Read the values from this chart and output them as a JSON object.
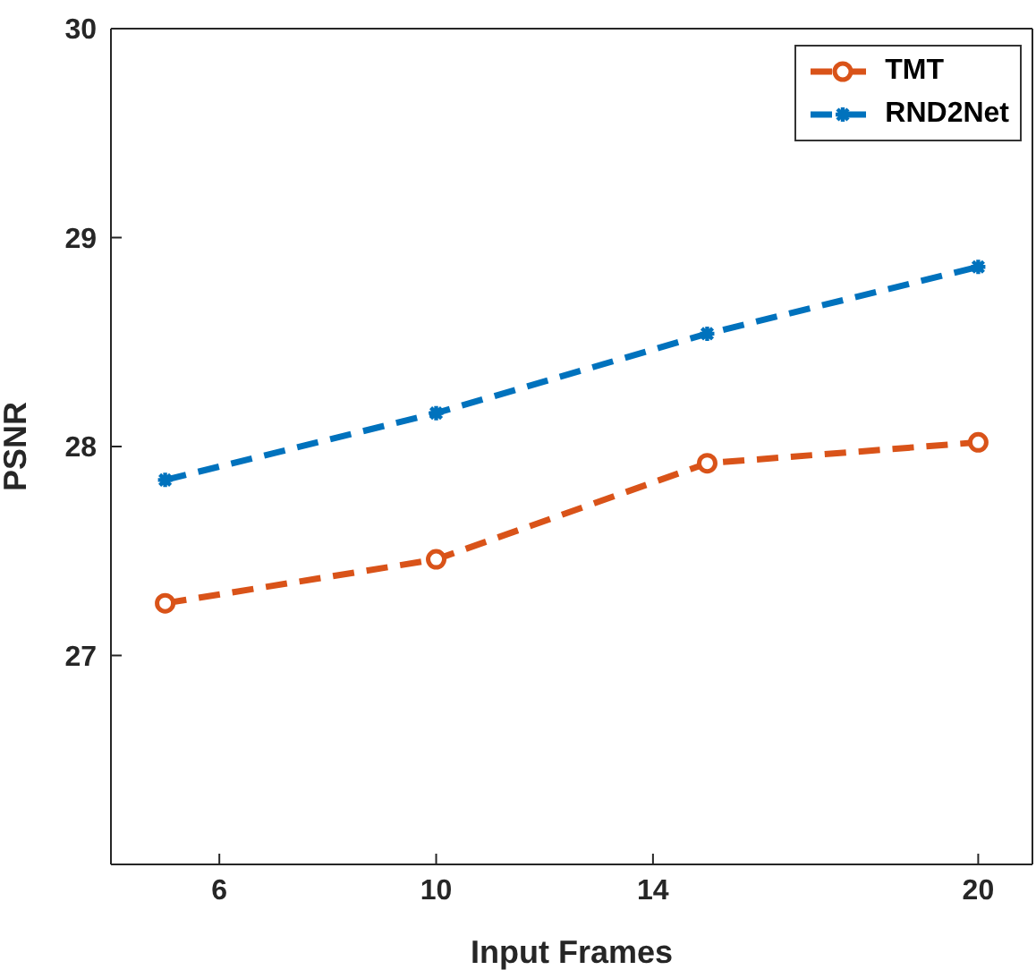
{
  "chart_data": {
    "type": "line",
    "xlabel": "Input Frames",
    "ylabel": "PSNR",
    "xlim": [
      4,
      21
    ],
    "xticks": [
      6,
      10,
      14,
      20
    ],
    "ylim": [
      26,
      30
    ],
    "yticks": [
      27,
      28,
      29,
      30
    ],
    "x": [
      5,
      10,
      15,
      20
    ],
    "series": [
      {
        "name": "TMT",
        "color": "#d95319",
        "values": [
          27.25,
          27.46,
          27.92,
          28.02
        ],
        "marker": "circle"
      },
      {
        "name": "RND2Net",
        "color": "#0072bd",
        "values": [
          27.84,
          28.16,
          28.54,
          28.86
        ],
        "marker": "cross"
      }
    ],
    "line_style": "dashed",
    "grid": false,
    "legend": "top right"
  }
}
